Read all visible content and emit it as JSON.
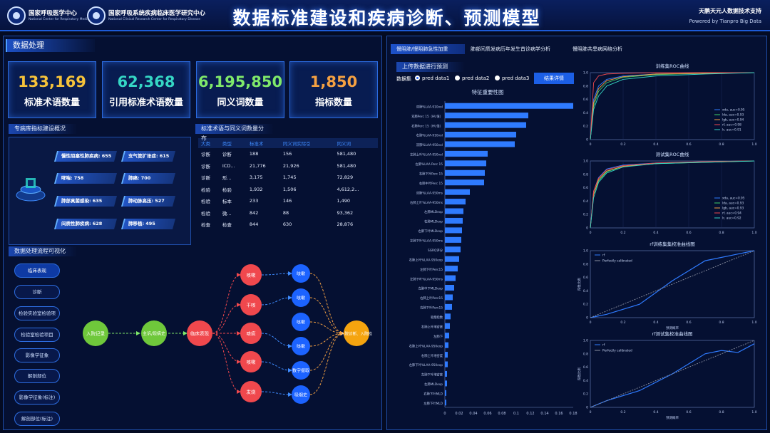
{
  "header": {
    "org1_name": "国家呼吸医学中心",
    "org1_en": "National Center for Respiratory Medicine",
    "org2_name": "国家呼吸系统疾病临床医学研究中心",
    "org2_en": "National Clinical Research Center for Respiratory Disease",
    "title": "数据标准建设和疾病诊断、预测模型",
    "support": "天鹏天元人数据技术支持",
    "powered": "Powered by Tianpro Big Data"
  },
  "left": {
    "section": "数据处理",
    "stats": [
      {
        "value": "133,169",
        "label": "标准术语数量",
        "color": "#f5c23a"
      },
      {
        "value": "62,368",
        "label": "引用标准术语数量",
        "color": "#35d6c4"
      },
      {
        "value": "6,195,850",
        "label": "同义词数量",
        "color": "#7fe86a"
      },
      {
        "value": "1,850",
        "label": "指标数量",
        "color": "#f5a142"
      }
    ],
    "build_title": "专病库指标建设概况",
    "params": [
      {
        "label": "慢性阻塞性肺疾病:",
        "value": "655"
      },
      {
        "label": "支气管扩张症:",
        "value": "615"
      },
      {
        "label": "哮喘:",
        "value": "758"
      },
      {
        "label": "肺癌:",
        "value": "700"
      },
      {
        "label": "肺部真菌感染:",
        "value": "635"
      },
      {
        "label": "肺动脉高压:",
        "value": "527"
      },
      {
        "label": "间质性肺疾病:",
        "value": "628"
      },
      {
        "label": "肺移植:",
        "value": "495"
      }
    ],
    "dist_title": "标准术语与同义词数量分布",
    "dist_headers": [
      "大类",
      "类型",
      "标准术",
      "同义词实际引",
      "同义词"
    ],
    "dist_rows": [
      [
        "诊断",
        "诊断",
        "188",
        "156",
        "581,480"
      ],
      [
        "诊断",
        "ICD...",
        "21,776",
        "21,926",
        "581,480"
      ],
      [
        "诊断",
        "形...",
        "3,175",
        "1,745",
        "72,829"
      ],
      [
        "检验",
        "检验",
        "1,932",
        "1,506",
        "4,612,2..."
      ],
      [
        "检验",
        "标本",
        "233",
        "146",
        "1,490"
      ],
      [
        "检验",
        "微...",
        "842",
        "88",
        "93,362"
      ],
      [
        "检查",
        "检查",
        "844",
        "630",
        "28,876"
      ]
    ],
    "flow_title": "数据处理流程可视化",
    "flow_buttons": [
      "临床表现",
      "诊断",
      "检验实验室检验项",
      "检验室检验项目",
      "影像学征象",
      "解剖部位",
      "影像学征象(标注)",
      "解剖部位(标注)"
    ],
    "flow_nodes": {
      "start": "入院记录",
      "n1": "主诉/现病史",
      "n2": "临床表现",
      "red": [
        "咳嗽",
        "干咳",
        "咳痰",
        "咳嗽",
        "发烧"
      ],
      "blue": [
        "咳嗽",
        "咳嗽",
        "咳嗽",
        "咳嗽",
        "数字提取",
        "吸烟史"
      ],
      "end": "入院诊断、入院检"
    }
  },
  "right": {
    "tabs": [
      "慢阻肺/慢阻肺急性加重",
      "肺部间质发病历年发生首诊病学分析",
      "慢阻肺共患病网络分析"
    ],
    "subsection": "上传数据进行预测",
    "dataset_label": "数据集",
    "radios": [
      "pred data1",
      "pred data2",
      "pred data3"
    ],
    "result_btn": "结果详情",
    "bar_title": "特征重要性图",
    "bar_x_ticks": [
      "0",
      "0.02",
      "0.04",
      "0.06",
      "0.08",
      "0.1",
      "0.12",
      "0.14",
      "0.16",
      "0.18"
    ],
    "roc1_title": "训练集ROC曲线",
    "roc2_title": "测试集ROC曲线",
    "cal1_title": "rf训练集集校准曲线图",
    "cal2_title": "rf测试集校准曲线图",
    "roc_ticks": [
      "0",
      "0.2",
      "0.4",
      "0.6",
      "0.8",
      "1.0"
    ],
    "roc1_legend": [
      "xda, auc=0.95",
      "lda, auc=0.93",
      "lgb, auc=0.94",
      "rf, auc=0.98",
      "lr, auc=0.91"
    ],
    "roc2_legend": [
      "xda, auc=0.95",
      "lda, auc=0.93",
      "lgb, auc=0.93",
      "rf, auc=0.94",
      "lr, auc=0.92"
    ],
    "cal_legend": [
      "rf",
      "Perfectly calibrated"
    ],
    "cal_xlabel": "预测概率",
    "cal_ylabel": "阳性比例",
    "colors": {
      "series": [
        "#2f7bff",
        "#3fd06a",
        "#f5a142",
        "#f0484d",
        "#35d6c4"
      ]
    }
  },
  "chart_data": [
    {
      "type": "bar",
      "title": "特征重要性图",
      "orientation": "horizontal",
      "categories": [
        "双肺%LAA-910vol",
        "双肺Perc 15（HU值）",
        "右肺Perc 15（HU值）",
        "右肺%LAA-910vol",
        "双肺%LAA-950vol",
        "左肺上叶%LAA-950vol",
        "左肺%LAA Perc 15",
        "右肺下叶Perc 15",
        "右肺中叶Perc 15",
        "双肺%LAA-950ms",
        "右肺上叶%LAA-950ms",
        "左肺MLDexp",
        "右肺MLDexp",
        "右肺下叶MLDexp",
        "左肺下叶%LAA-950ms",
        "SGRQ评分",
        "右肺上叶%LAA-950exp",
        "左肺下叶Perc15",
        "左肺下叶%LAA-950ms",
        "左肺中下MLDexp",
        "右肺上叶Perc15",
        "右肺下叶Perc15",
        "吸烟指数",
        "右肺上叶地密度",
        "左肺下",
        "右肺上叶%LAA-950exp",
        "右肺上叶地密度",
        "左肺下叶%LAA-950exp",
        "左肺下叶地密度",
        "左肺MLDexp",
        "右肺下叶MLD",
        "左肺下叶MLD"
      ],
      "values": [
        0.18,
        0.117,
        0.114,
        0.1,
        0.098,
        0.06,
        0.058,
        0.056,
        0.055,
        0.035,
        0.029,
        0.026,
        0.025,
        0.024,
        0.023,
        0.022,
        0.02,
        0.018,
        0.015,
        0.013,
        0.011,
        0.01,
        0.008,
        0.007,
        0.006,
        0.005,
        0.004,
        0.004,
        0.003,
        0.003,
        0.002,
        0.002
      ],
      "xlim": [
        0,
        0.18
      ]
    },
    {
      "type": "line",
      "title": "训练集ROC曲线",
      "xlim": [
        0,
        1
      ],
      "ylim": [
        0,
        1
      ],
      "legend": "bottom-right",
      "series": [
        {
          "name": "xda, auc=0.95",
          "x": [
            0,
            0.02,
            0.05,
            0.1,
            0.2,
            0.4,
            0.7,
            1
          ],
          "y": [
            0,
            0.6,
            0.8,
            0.9,
            0.95,
            0.98,
            0.99,
            1
          ]
        },
        {
          "name": "lda, auc=0.93",
          "x": [
            0,
            0.02,
            0.05,
            0.1,
            0.2,
            0.4,
            0.7,
            1
          ],
          "y": [
            0,
            0.5,
            0.72,
            0.85,
            0.93,
            0.97,
            0.99,
            1
          ]
        },
        {
          "name": "lgb, auc=0.94",
          "x": [
            0,
            0.02,
            0.05,
            0.1,
            0.2,
            0.4,
            0.7,
            1
          ],
          "y": [
            0,
            0.55,
            0.76,
            0.88,
            0.94,
            0.98,
            0.99,
            1
          ]
        },
        {
          "name": "rf, auc=0.98",
          "x": [
            0,
            0.02,
            0.05,
            0.1,
            0.2,
            0.4,
            0.7,
            1
          ],
          "y": [
            0,
            0.85,
            0.95,
            0.98,
            0.99,
            1,
            1,
            1
          ]
        },
        {
          "name": "lr, auc=0.91",
          "x": [
            0,
            0.02,
            0.05,
            0.1,
            0.2,
            0.4,
            0.7,
            1
          ],
          "y": [
            0,
            0.45,
            0.65,
            0.8,
            0.9,
            0.95,
            0.98,
            1
          ]
        }
      ]
    },
    {
      "type": "line",
      "title": "测试集ROC曲线",
      "xlim": [
        0,
        1
      ],
      "ylim": [
        0,
        1
      ],
      "legend": "bottom-right",
      "series": [
        {
          "name": "xda, auc=0.95",
          "x": [
            0,
            0.02,
            0.05,
            0.1,
            0.2,
            0.4,
            0.7,
            1
          ],
          "y": [
            0,
            0.55,
            0.75,
            0.88,
            0.94,
            0.97,
            0.99,
            1
          ]
        },
        {
          "name": "lda, auc=0.93",
          "x": [
            0,
            0.02,
            0.05,
            0.1,
            0.2,
            0.4,
            0.7,
            1
          ],
          "y": [
            0,
            0.5,
            0.7,
            0.84,
            0.92,
            0.96,
            0.98,
            1
          ]
        },
        {
          "name": "lgb, auc=0.93",
          "x": [
            0,
            0.02,
            0.05,
            0.1,
            0.2,
            0.4,
            0.7,
            1
          ],
          "y": [
            0,
            0.5,
            0.72,
            0.85,
            0.92,
            0.96,
            0.99,
            1
          ]
        },
        {
          "name": "rf, auc=0.94",
          "x": [
            0,
            0.02,
            0.05,
            0.1,
            0.2,
            0.4,
            0.7,
            1
          ],
          "y": [
            0,
            0.55,
            0.74,
            0.87,
            0.93,
            0.97,
            0.99,
            1
          ]
        },
        {
          "name": "lr, auc=0.92",
          "x": [
            0,
            0.02,
            0.05,
            0.1,
            0.2,
            0.4,
            0.7,
            1
          ],
          "y": [
            0,
            0.45,
            0.68,
            0.82,
            0.91,
            0.96,
            0.98,
            1
          ]
        }
      ]
    },
    {
      "type": "line",
      "title": "rf训练集集校准曲线图",
      "xlabel": "预测概率",
      "ylabel": "阳性比例",
      "xlim": [
        0,
        1
      ],
      "ylim": [
        0,
        1
      ],
      "series": [
        {
          "name": "rf",
          "x": [
            0,
            0.1,
            0.3,
            0.5,
            0.7,
            0.9,
            1
          ],
          "y": [
            0,
            0.05,
            0.2,
            0.55,
            0.85,
            0.95,
            1
          ]
        },
        {
          "name": "Perfectly calibrated",
          "x": [
            0,
            1
          ],
          "y": [
            0,
            1
          ]
        }
      ]
    },
    {
      "type": "line",
      "title": "rf测试集校准曲线图",
      "xlabel": "预测概率",
      "ylabel": "阳性比例",
      "xlim": [
        0,
        1
      ],
      "ylim": [
        0,
        1
      ],
      "series": [
        {
          "name": "rf",
          "x": [
            0,
            0.1,
            0.3,
            0.5,
            0.7,
            0.8,
            0.9,
            1
          ],
          "y": [
            0,
            0.1,
            0.25,
            0.5,
            0.8,
            0.85,
            0.82,
            0.95
          ]
        },
        {
          "name": "Perfectly calibrated",
          "x": [
            0,
            1
          ],
          "y": [
            0,
            1
          ]
        }
      ]
    }
  ]
}
